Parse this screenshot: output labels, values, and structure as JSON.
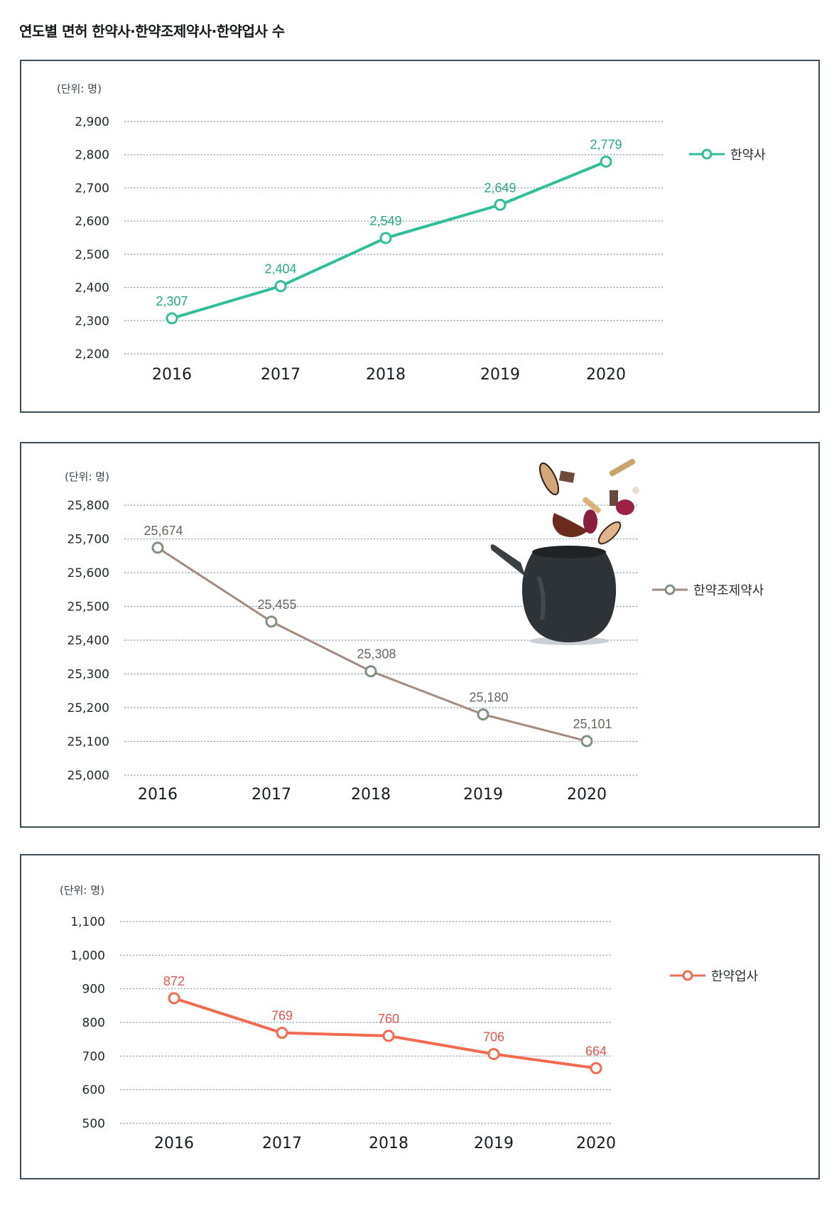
{
  "page": {
    "title": "연도별 면허 한약사·한약조제약사·한약업사 수"
  },
  "panels": [
    {
      "unit_label": "(단위: 명)",
      "legend": "한약사",
      "color": "#2fbf9a",
      "label_color": "#27a888",
      "marker_color": "#2fbf9a"
    },
    {
      "unit_label": "(단위: 명)",
      "legend": "한약조제약사",
      "color": "#a38c7d",
      "label_color": "#6b6560",
      "marker_color": "#7e927f",
      "illustration": "herbal-medicine-pot-icon"
    },
    {
      "unit_label": "(단위: 명)",
      "legend": "한약업사",
      "color": "#f26b50",
      "label_color": "#e8554a",
      "marker_color": "#f26b50"
    }
  ],
  "chart_data": [
    {
      "type": "line",
      "title": "한약사",
      "categories": [
        "2016",
        "2017",
        "2018",
        "2019",
        "2020"
      ],
      "series": [
        {
          "name": "한약사",
          "values": [
            2307,
            2404,
            2549,
            2649,
            2779
          ]
        }
      ],
      "data_labels": [
        "2,307",
        "2,404",
        "2,549",
        "2,649",
        "2,779"
      ],
      "ylabel": "(단위: 명)",
      "yticks": [
        "2,900",
        "2,800",
        "2,700",
        "2,600",
        "2,500",
        "2,400",
        "2,300",
        "2,200"
      ],
      "ylim": [
        2200,
        2900
      ],
      "grid": true,
      "legend_position": "right"
    },
    {
      "type": "line",
      "title": "한약조제약사",
      "categories": [
        "2016",
        "2017",
        "2018",
        "2019",
        "2020"
      ],
      "series": [
        {
          "name": "한약조제약사",
          "values": [
            25674,
            25455,
            25308,
            25180,
            25101
          ]
        }
      ],
      "data_labels": [
        "25,674",
        "25,455",
        "25,308",
        "25,180",
        "25,101"
      ],
      "ylabel": "(단위: 명)",
      "yticks": [
        "25,800",
        "25,700",
        "25,600",
        "25,500",
        "25,400",
        "25,300",
        "25,200",
        "25,100",
        "25,000"
      ],
      "ylim": [
        25000,
        25800
      ],
      "grid": true,
      "legend_position": "right"
    },
    {
      "type": "line",
      "title": "한약업사",
      "categories": [
        "2016",
        "2017",
        "2018",
        "2019",
        "2020"
      ],
      "series": [
        {
          "name": "한약업사",
          "values": [
            872,
            769,
            760,
            706,
            664
          ]
        }
      ],
      "data_labels": [
        "872",
        "769",
        "760",
        "706",
        "664"
      ],
      "ylabel": "(단위: 명)",
      "yticks": [
        "1,100",
        "1,000",
        "900",
        "800",
        "700",
        "600",
        "500"
      ],
      "ylim": [
        500,
        1100
      ],
      "grid": true,
      "legend_position": "right"
    }
  ]
}
